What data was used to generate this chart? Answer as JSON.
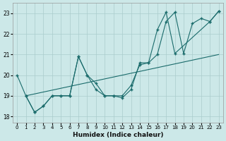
{
  "xlabel": "Humidex (Indice chaleur)",
  "ylabel": "",
  "bg_color": "#cce8e8",
  "grid_color": "#aacccc",
  "line_color": "#1a6b6b",
  "xlim": [
    -0.5,
    23.5
  ],
  "ylim": [
    17.7,
    23.5
  ],
  "yticks": [
    18,
    19,
    20,
    21,
    22,
    23
  ],
  "xticks": [
    0,
    1,
    2,
    3,
    4,
    5,
    6,
    7,
    8,
    9,
    10,
    11,
    12,
    13,
    14,
    15,
    16,
    17,
    18,
    19,
    20,
    21,
    22,
    23
  ],
  "series1_x": [
    0,
    1,
    2,
    3,
    4,
    5,
    6,
    7,
    8,
    9,
    10,
    11,
    12,
    13,
    14,
    15,
    16,
    17,
    18,
    19,
    20,
    21,
    22,
    23
  ],
  "series1_y": [
    20.0,
    19.0,
    18.2,
    18.5,
    19.0,
    19.0,
    19.0,
    20.9,
    20.0,
    19.6,
    19.0,
    19.0,
    18.9,
    19.3,
    20.6,
    20.6,
    21.0,
    22.6,
    23.05,
    21.05,
    22.5,
    22.75,
    22.6,
    23.1
  ],
  "series2_x": [
    1,
    2,
    3,
    4,
    5,
    6,
    7,
    8,
    9,
    10,
    11,
    12,
    13,
    14,
    15,
    16,
    17,
    18,
    22,
    23
  ],
  "series2_y": [
    19.0,
    18.2,
    18.5,
    19.0,
    19.0,
    19.0,
    20.9,
    20.0,
    19.3,
    19.0,
    19.0,
    19.0,
    19.5,
    20.5,
    20.6,
    22.2,
    23.05,
    21.05,
    22.6,
    23.1
  ],
  "series3_x": [
    1,
    23
  ],
  "series3_y": [
    19.0,
    21.0
  ]
}
